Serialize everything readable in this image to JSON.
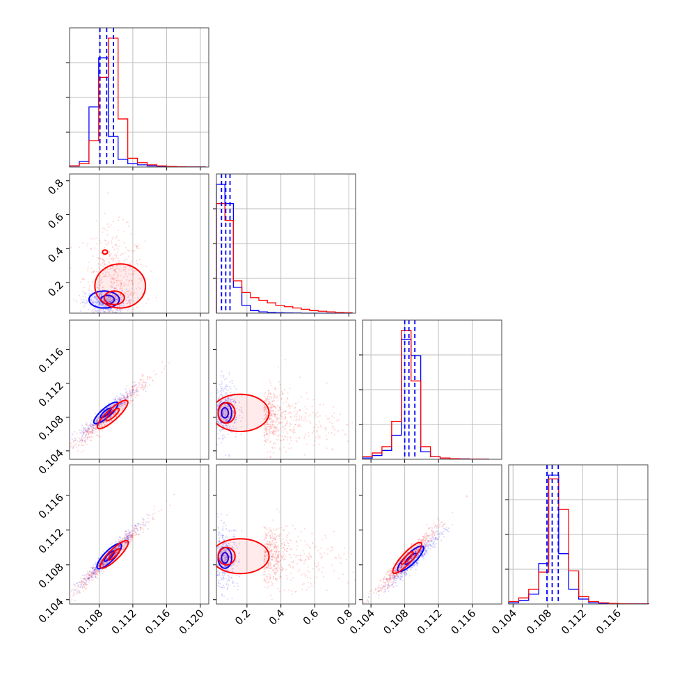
{
  "chart_data": {
    "type": "corner",
    "colors": {
      "series_a": "#0000ff",
      "series_b": "#ff0000"
    },
    "grid": true,
    "params": [
      {
        "range": [
          0.1045,
          0.121
        ],
        "ticks": [
          "0.108",
          "0.112",
          "0.116",
          "0.120"
        ],
        "tick_values": [
          0.108,
          0.112,
          0.116,
          0.12
        ]
      },
      {
        "range": [
          0.02,
          0.84
        ],
        "ticks": [
          "0.2",
          "0.4",
          "0.6",
          "0.8"
        ],
        "tick_values": [
          0.2,
          0.4,
          0.6,
          0.8
        ]
      },
      {
        "range": [
          0.103,
          0.1195
        ],
        "ticks": [
          "0.104",
          "0.108",
          "0.112",
          "0.116"
        ],
        "tick_values": [
          0.104,
          0.108,
          0.112,
          0.116
        ]
      },
      {
        "range": [
          0.1035,
          0.1195
        ],
        "ticks": [
          "0.104",
          "0.108",
          "0.112",
          "0.116"
        ],
        "tick_values": [
          0.104,
          0.108,
          0.112,
          0.116
        ]
      }
    ],
    "diagonal": [
      {
        "bins": [
          0.1045,
          0.10565,
          0.1068,
          0.10795,
          0.1091,
          0.11025,
          0.1114,
          0.11255,
          0.1137,
          0.11485,
          0.116,
          0.11715,
          0.1183,
          0.11945,
          0.1206
        ],
        "series_a": [
          0.01,
          0.05,
          0.55,
          1.0,
          0.28,
          0.07,
          0.03,
          0.02,
          0.01,
          0.005,
          0.003,
          0.002,
          0.001,
          0.001
        ],
        "series_b": [
          0.01,
          0.03,
          0.24,
          0.82,
          1.18,
          0.44,
          0.08,
          0.04,
          0.02,
          0.01,
          0.005,
          0.002,
          0.001,
          0.001
        ],
        "quantile_lines": [
          0.1081,
          0.1089,
          0.1097
        ]
      },
      {
        "bins": [
          0.02,
          0.07,
          0.12,
          0.17,
          0.22,
          0.27,
          0.32,
          0.37,
          0.42,
          0.47,
          0.52,
          0.57,
          0.62,
          0.67,
          0.72,
          0.77,
          0.82
        ],
        "series_a": [
          1.0,
          0.85,
          0.2,
          0.06,
          0.02,
          0.01,
          0.005,
          0.003,
          0.002,
          0.001,
          0,
          0,
          0,
          0,
          0,
          0
        ],
        "series_b": [
          0.85,
          0.72,
          0.25,
          0.16,
          0.12,
          0.1,
          0.08,
          0.06,
          0.05,
          0.04,
          0.03,
          0.02,
          0.015,
          0.01,
          0.005,
          0.003
        ],
        "quantile_lines": [
          0.05,
          0.075,
          0.1
        ]
      },
      {
        "bins": [
          0.103,
          0.10415,
          0.1053,
          0.10645,
          0.1076,
          0.10875,
          0.1099,
          0.11105,
          0.1122,
          0.11335,
          0.1145,
          0.11565,
          0.1168,
          0.11795
        ],
        "series_a": [
          0.01,
          0.03,
          0.07,
          0.19,
          0.95,
          0.82,
          0.06,
          0.02,
          0.01,
          0.005,
          0.003,
          0.001,
          0.001
        ],
        "series_b": [
          0.02,
          0.05,
          0.1,
          0.3,
          1.02,
          0.62,
          0.1,
          0.02,
          0.01,
          0.005,
          0.002,
          0.001,
          0.001
        ],
        "quantile_lines": [
          0.108,
          0.1085,
          0.1092
        ]
      },
      {
        "bins": [
          0.1035,
          0.10465,
          0.1058,
          0.10695,
          0.1081,
          0.10925,
          0.1104,
          0.11155,
          0.1127,
          0.11385,
          0.115,
          0.11615,
          0.1173,
          0.11845,
          0.1196
        ],
        "series_a": [
          0.01,
          0.03,
          0.08,
          0.33,
          1.05,
          0.41,
          0.12,
          0.04,
          0.01,
          0.005,
          0.002,
          0.001,
          0.001,
          0.001
        ],
        "series_b": [
          0.02,
          0.05,
          0.12,
          0.26,
          1.02,
          0.77,
          0.27,
          0.06,
          0.02,
          0.01,
          0.005,
          0.002,
          0.001,
          0.001
        ],
        "quantile_lines": [
          0.1079,
          0.1085,
          0.1092
        ]
      }
    ],
    "scatter_panels": [
      {
        "x_param": 0,
        "y_param": 1,
        "series_a": {
          "cx": 0.1088,
          "cy": 0.08,
          "sx": 0.0012,
          "sy": 0.04,
          "rho": 0.0
        },
        "series_b": {
          "cx": 0.1098,
          "cy": 0.2,
          "sx": 0.0018,
          "sy": 0.16,
          "rho": -0.1
        },
        "contours": [
          {
            "series": "series_a",
            "cx": 0.1086,
            "cy": 0.1,
            "rx": 0.0018,
            "ry": 0.05
          },
          {
            "series": "series_a",
            "cx": 0.109,
            "cy": 0.1,
            "rx": 0.0008,
            "ry": 0.025
          },
          {
            "series": "series_b",
            "cx": 0.1105,
            "cy": 0.18,
            "rx": 0.003,
            "ry": 0.13
          },
          {
            "series": "series_b",
            "cx": 0.1098,
            "cy": 0.11,
            "rx": 0.0012,
            "ry": 0.04
          },
          {
            "series": "series_b",
            "cx": 0.1087,
            "cy": 0.38,
            "rx": 0.0003,
            "ry": 0.012
          }
        ]
      },
      {
        "x_param": 0,
        "y_param": 2,
        "series_a": {
          "cx": 0.109,
          "cy": 0.1085,
          "sx": 0.0016,
          "sy": 0.0014,
          "rho": 0.93
        },
        "series_b": {
          "cx": 0.1092,
          "cy": 0.1083,
          "sx": 0.0024,
          "sy": 0.0022,
          "rho": 0.97
        },
        "contours": [
          {
            "series": "series_a",
            "cx": 0.1088,
            "cy": 0.1085,
            "rx": 0.0016,
            "ry": 0.0009
          },
          {
            "series": "series_a",
            "cx": 0.1088,
            "cy": 0.1085,
            "rx": 0.0007,
            "ry": 0.0004
          },
          {
            "series": "series_b",
            "cx": 0.1096,
            "cy": 0.1083,
            "rx": 0.0021,
            "ry": 0.0011
          },
          {
            "series": "series_b",
            "cx": 0.1096,
            "cy": 0.1083,
            "rx": 0.0009,
            "ry": 0.0005
          }
        ]
      },
      {
        "x_param": 1,
        "y_param": 2,
        "series_a": {
          "cx": 0.07,
          "cy": 0.109,
          "sx": 0.04,
          "sy": 0.0018,
          "rho": 0.0
        },
        "series_b": {
          "cx": 0.3,
          "cy": 0.1078,
          "sx": 0.18,
          "sy": 0.0018,
          "rho": -0.2
        },
        "contours": [
          {
            "series": "series_a",
            "cx": 0.07,
            "cy": 0.1085,
            "rx": 0.04,
            "ry": 0.0012
          },
          {
            "series": "series_a",
            "cx": 0.07,
            "cy": 0.1085,
            "rx": 0.02,
            "ry": 0.0006
          },
          {
            "series": "series_b",
            "cx": 0.16,
            "cy": 0.1085,
            "rx": 0.17,
            "ry": 0.0022
          },
          {
            "series": "series_b",
            "cx": 0.08,
            "cy": 0.1085,
            "rx": 0.05,
            "ry": 0.0012
          }
        ]
      },
      {
        "x_param": 0,
        "y_param": 3,
        "series_a": {
          "cx": 0.1092,
          "cy": 0.109,
          "sx": 0.0018,
          "sy": 0.0018,
          "rho": 0.97
        },
        "series_b": {
          "cx": 0.1094,
          "cy": 0.109,
          "sx": 0.0022,
          "sy": 0.0021,
          "rho": 0.98
        },
        "contours": [
          {
            "series": "series_a",
            "cx": 0.1092,
            "cy": 0.109,
            "rx": 0.0017,
            "ry": 0.001
          },
          {
            "series": "series_a",
            "cx": 0.1092,
            "cy": 0.109,
            "rx": 0.0007,
            "ry": 0.0004
          },
          {
            "series": "series_b",
            "cx": 0.1098,
            "cy": 0.1092,
            "rx": 0.002,
            "ry": 0.001
          },
          {
            "series": "series_b",
            "cx": 0.1098,
            "cy": 0.1092,
            "rx": 0.0008,
            "ry": 0.0004
          }
        ]
      },
      {
        "x_param": 1,
        "y_param": 3,
        "series_a": {
          "cx": 0.07,
          "cy": 0.1088,
          "sx": 0.04,
          "sy": 0.0018,
          "rho": 0.0
        },
        "series_b": {
          "cx": 0.3,
          "cy": 0.109,
          "sx": 0.18,
          "sy": 0.0017,
          "rho": -0.1
        },
        "contours": [
          {
            "series": "series_a",
            "cx": 0.07,
            "cy": 0.1088,
            "rx": 0.04,
            "ry": 0.0012
          },
          {
            "series": "series_a",
            "cx": 0.07,
            "cy": 0.1088,
            "rx": 0.02,
            "ry": 0.0006
          },
          {
            "series": "series_b",
            "cx": 0.16,
            "cy": 0.109,
            "rx": 0.17,
            "ry": 0.002
          },
          {
            "series": "series_b",
            "cx": 0.08,
            "cy": 0.109,
            "rx": 0.05,
            "ry": 0.001
          }
        ]
      },
      {
        "x_param": 2,
        "y_param": 3,
        "series_a": {
          "cx": 0.1092,
          "cy": 0.1087,
          "sx": 0.0018,
          "sy": 0.0017,
          "rho": 0.96
        },
        "series_b": {
          "cx": 0.1082,
          "cy": 0.1085,
          "sx": 0.002,
          "sy": 0.0021,
          "rho": 0.97
        },
        "contours": [
          {
            "series": "series_a",
            "cx": 0.1087,
            "cy": 0.1087,
            "rx": 0.0018,
            "ry": 0.001
          },
          {
            "series": "series_a",
            "cx": 0.1087,
            "cy": 0.1087,
            "rx": 0.0008,
            "ry": 0.0004
          },
          {
            "series": "series_b",
            "cx": 0.1083,
            "cy": 0.1088,
            "rx": 0.0022,
            "ry": 0.001
          },
          {
            "series": "series_b",
            "cx": 0.1083,
            "cy": 0.1088,
            "rx": 0.0009,
            "ry": 0.0004
          }
        ]
      }
    ]
  }
}
